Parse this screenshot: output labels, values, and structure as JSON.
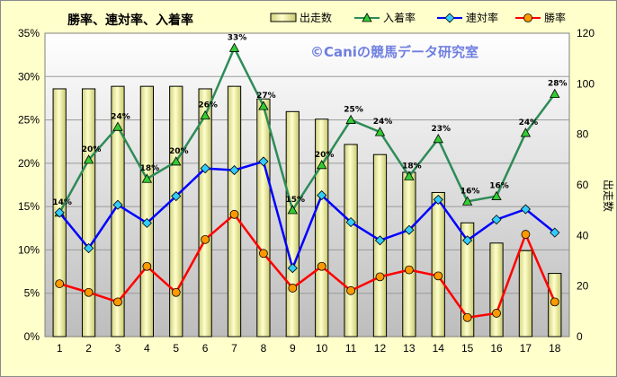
{
  "chart_data": {
    "type": "bar",
    "title": "勝率、連対率、入着率",
    "watermark": "©Caniの競馬データ研究室",
    "categories": [
      "1",
      "2",
      "3",
      "4",
      "5",
      "6",
      "7",
      "8",
      "9",
      "10",
      "11",
      "12",
      "13",
      "14",
      "15",
      "16",
      "17",
      "18"
    ],
    "left_axis": {
      "ylim": [
        0,
        35
      ],
      "ticks": [
        "0%",
        "5%",
        "10%",
        "15%",
        "20%",
        "25%",
        "30%",
        "35%"
      ]
    },
    "right_axis": {
      "ylim": [
        0,
        120
      ],
      "ticks": [
        "0",
        "20",
        "40",
        "60",
        "80",
        "100",
        "120"
      ],
      "label": "出走数"
    },
    "series": [
      {
        "name": "出走数",
        "kind": "bar",
        "axis": "right",
        "color": "#e6e69a",
        "values": [
          98,
          98,
          99,
          99,
          99,
          98,
          99,
          94,
          89,
          86,
          76,
          72,
          65,
          57,
          45,
          37,
          34,
          25
        ]
      },
      {
        "name": "入着率",
        "kind": "line",
        "axis": "left",
        "color": "#2e8b57",
        "marker": "triangle",
        "values": [
          14.3,
          20.4,
          24.2,
          18.2,
          20.2,
          25.5,
          33.3,
          26.6,
          14.6,
          19.8,
          25.0,
          23.6,
          18.5,
          22.8,
          15.6,
          16.2,
          23.5,
          28.0
        ],
        "labels": [
          "14%",
          "20%",
          "24%",
          "18%",
          "20%",
          "26%",
          "33%",
          "27%",
          "15%",
          "20%",
          "25%",
          "24%",
          "18%",
          "23%",
          "16%",
          "16%",
          "24%",
          "28%"
        ]
      },
      {
        "name": "連対率",
        "kind": "line",
        "axis": "left",
        "color": "#0000ff",
        "marker": "diamond",
        "values": [
          14.3,
          10.2,
          15.2,
          13.1,
          16.2,
          19.4,
          19.2,
          20.2,
          7.9,
          16.3,
          13.2,
          11.1,
          12.3,
          15.8,
          11.1,
          13.5,
          14.7,
          12.0
        ]
      },
      {
        "name": "勝率",
        "kind": "line",
        "axis": "left",
        "color": "#ff0000",
        "marker": "circle",
        "marker_fill": "#ff9900",
        "values": [
          6.1,
          5.1,
          4.0,
          8.1,
          5.1,
          11.2,
          14.1,
          9.6,
          5.6,
          8.1,
          5.3,
          6.9,
          7.7,
          7.0,
          2.2,
          2.7,
          11.8,
          4.0
        ]
      }
    ],
    "legend_placement": "top"
  }
}
